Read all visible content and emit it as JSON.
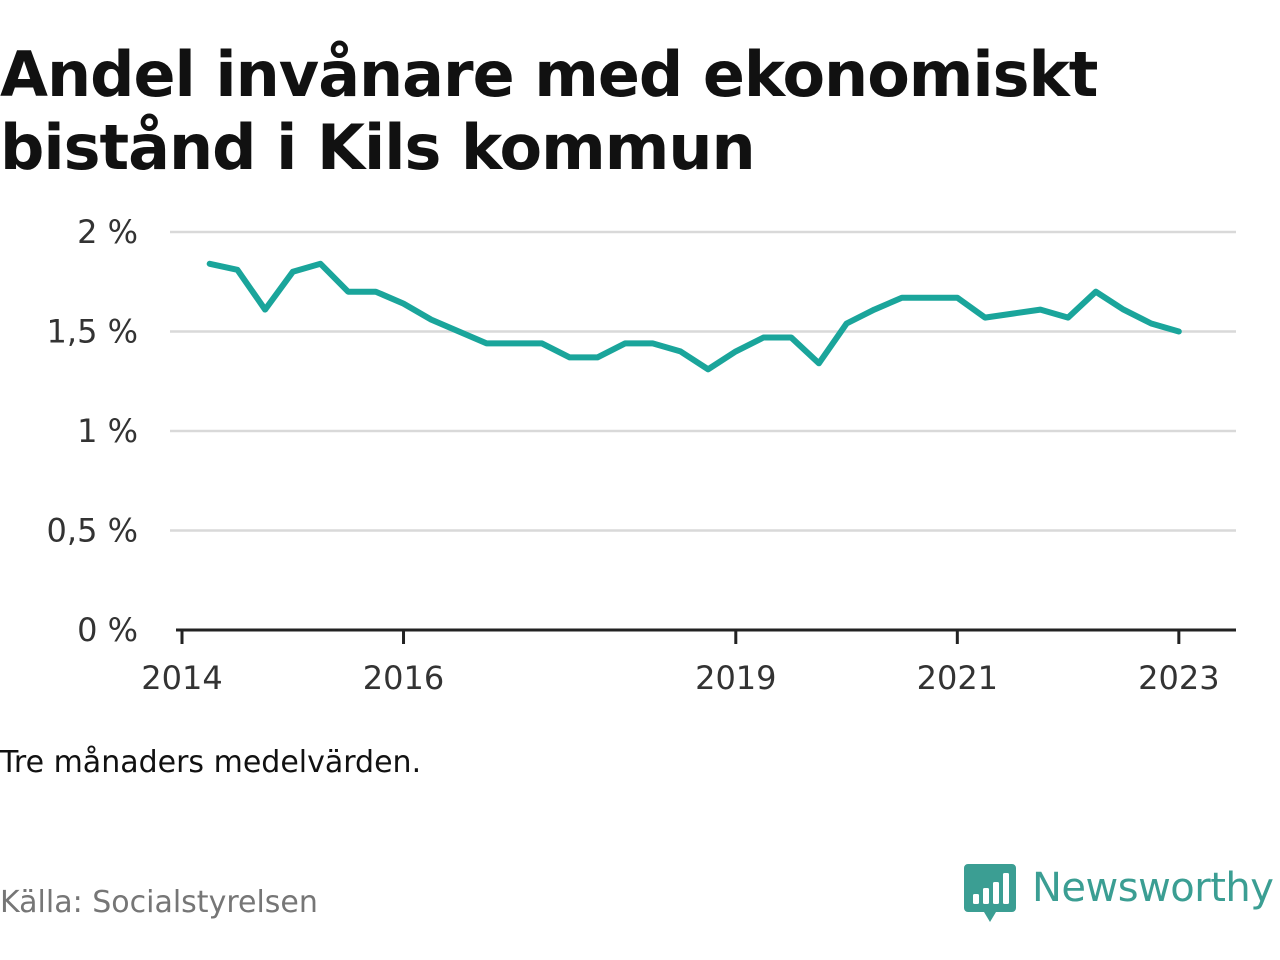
{
  "title": "Andel invånare med ekonomiskt bistånd i Kils kommun",
  "note": "Tre månaders medelvärden.",
  "source": "Källa: Socialstyrelsen",
  "brand": {
    "name": "Newsworthy",
    "icon": "newsworthy-logo-icon",
    "color": "#3b9e93"
  },
  "chart_data": {
    "type": "line",
    "title": "Andel invånare med ekonomiskt bistånd i Kils kommun",
    "xlabel": "",
    "ylabel": "",
    "ylim": [
      0,
      2
    ],
    "xlim": [
      "2014-01",
      "2023-06"
    ],
    "grid": true,
    "legend": "none",
    "line_color": "#1aa59b",
    "y_ticks": [
      {
        "value": 0,
        "label": "0 %"
      },
      {
        "value": 0.5,
        "label": "0,5 %"
      },
      {
        "value": 1,
        "label": "1 %"
      },
      {
        "value": 1.5,
        "label": "1,5 %"
      },
      {
        "value": 2,
        "label": "2 %"
      }
    ],
    "x_ticks": [
      {
        "value": "2014-01",
        "label": "2014"
      },
      {
        "value": "2016-01",
        "label": "2016"
      },
      {
        "value": "2019-01",
        "label": "2019"
      },
      {
        "value": "2021-01",
        "label": "2021"
      },
      {
        "value": "2023-01",
        "label": "2023"
      }
    ],
    "series": [
      {
        "x": [
          "2014-04",
          "2014-07",
          "2014-10",
          "2015-01",
          "2015-04",
          "2015-07",
          "2015-10",
          "2016-01",
          "2016-04",
          "2016-07",
          "2016-10",
          "2017-01",
          "2017-04",
          "2017-07",
          "2017-10",
          "2018-01",
          "2018-04",
          "2018-07",
          "2018-10",
          "2019-01",
          "2019-04",
          "2019-07",
          "2019-10",
          "2020-01",
          "2020-04",
          "2020-07",
          "2020-10",
          "2021-01",
          "2021-04",
          "2021-07",
          "2021-10",
          "2022-01",
          "2022-04",
          "2022-07",
          "2022-10",
          "2023-01"
        ],
        "values": [
          1.84,
          1.81,
          1.61,
          1.8,
          1.84,
          1.7,
          1.7,
          1.64,
          1.56,
          1.5,
          1.44,
          1.44,
          1.44,
          1.37,
          1.37,
          1.44,
          1.44,
          1.4,
          1.31,
          1.4,
          1.47,
          1.47,
          1.34,
          1.54,
          1.61,
          1.67,
          1.67,
          1.67,
          1.57,
          1.59,
          1.61,
          1.57,
          1.7,
          1.61,
          1.54,
          1.5
        ]
      }
    ]
  }
}
